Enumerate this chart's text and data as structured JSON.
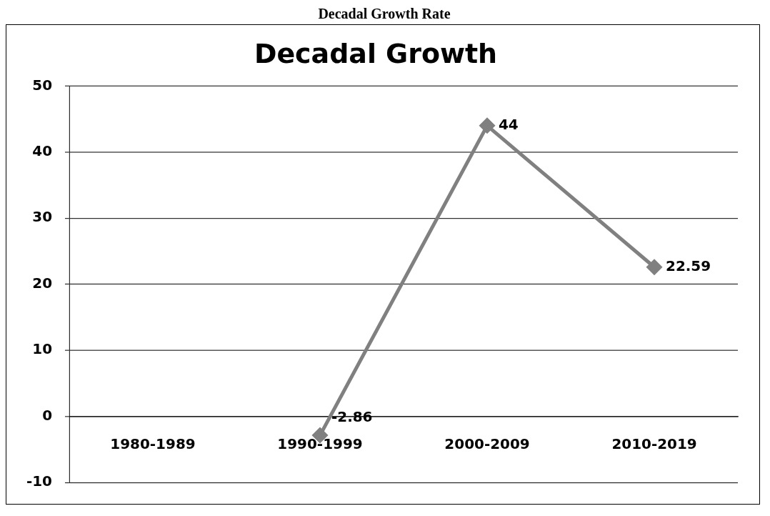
{
  "chart_data": {
    "type": "line",
    "title": "Decadal Growth",
    "annotations": [
      "Decadal Growth Rate"
    ],
    "categories": [
      "1980-1989",
      "1990-1999",
      "2000-2009",
      "2010-2019"
    ],
    "series": [
      {
        "color": "#808080",
        "values": [
          null,
          -2.86,
          44,
          22.59
        ]
      }
    ],
    "ylim": [
      -10,
      50
    ],
    "yticks": [
      -10,
      0,
      10,
      20,
      30,
      40,
      50
    ],
    "grid": "y",
    "legend": false,
    "marker": "diamond",
    "line_style": "solid",
    "data_labels": true
  }
}
